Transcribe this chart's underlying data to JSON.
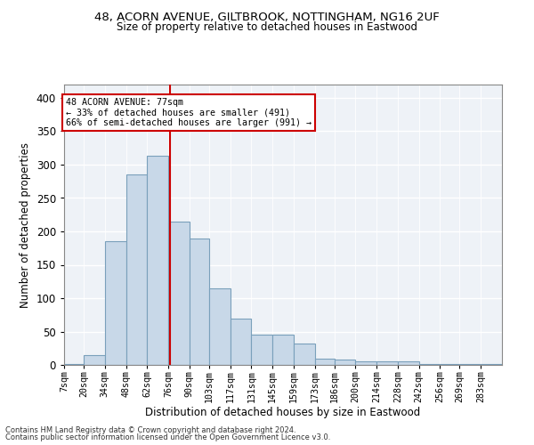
{
  "title1": "48, ACORN AVENUE, GILTBROOK, NOTTINGHAM, NG16 2UF",
  "title2": "Size of property relative to detached houses in Eastwood",
  "xlabel": "Distribution of detached houses by size in Eastwood",
  "ylabel": "Number of detached properties",
  "footnote1": "Contains HM Land Registry data © Crown copyright and database right 2024.",
  "footnote2": "Contains public sector information licensed under the Open Government Licence v3.0.",
  "annotation_title": "48 ACORN AVENUE: 77sqm",
  "annotation_line1": "← 33% of detached houses are smaller (491)",
  "annotation_line2": "66% of semi-detached houses are larger (991) →",
  "property_sqm": 77,
  "bar_color": "#c8d8e8",
  "bar_edge_color": "#7aa0bb",
  "vline_color": "#cc0000",
  "annotation_box_color": "#ffffff",
  "annotation_box_edge": "#cc0000",
  "background_color": "#eef2f7",
  "categories": [
    "7sqm",
    "20sqm",
    "34sqm",
    "48sqm",
    "62sqm",
    "76sqm",
    "90sqm",
    "103sqm",
    "117sqm",
    "131sqm",
    "145sqm",
    "159sqm",
    "173sqm",
    "186sqm",
    "200sqm",
    "214sqm",
    "228sqm",
    "242sqm",
    "256sqm",
    "269sqm",
    "283sqm"
  ],
  "bin_edges": [
    7,
    20,
    34,
    48,
    62,
    76,
    90,
    103,
    117,
    131,
    145,
    159,
    173,
    186,
    200,
    214,
    228,
    242,
    256,
    269,
    283,
    297
  ],
  "values": [
    2,
    15,
    185,
    285,
    313,
    215,
    190,
    115,
    70,
    46,
    46,
    32,
    10,
    8,
    6,
    5,
    5,
    2,
    1,
    1,
    1
  ],
  "ylim": [
    0,
    420
  ],
  "yticks": [
    0,
    50,
    100,
    150,
    200,
    250,
    300,
    350,
    400
  ]
}
